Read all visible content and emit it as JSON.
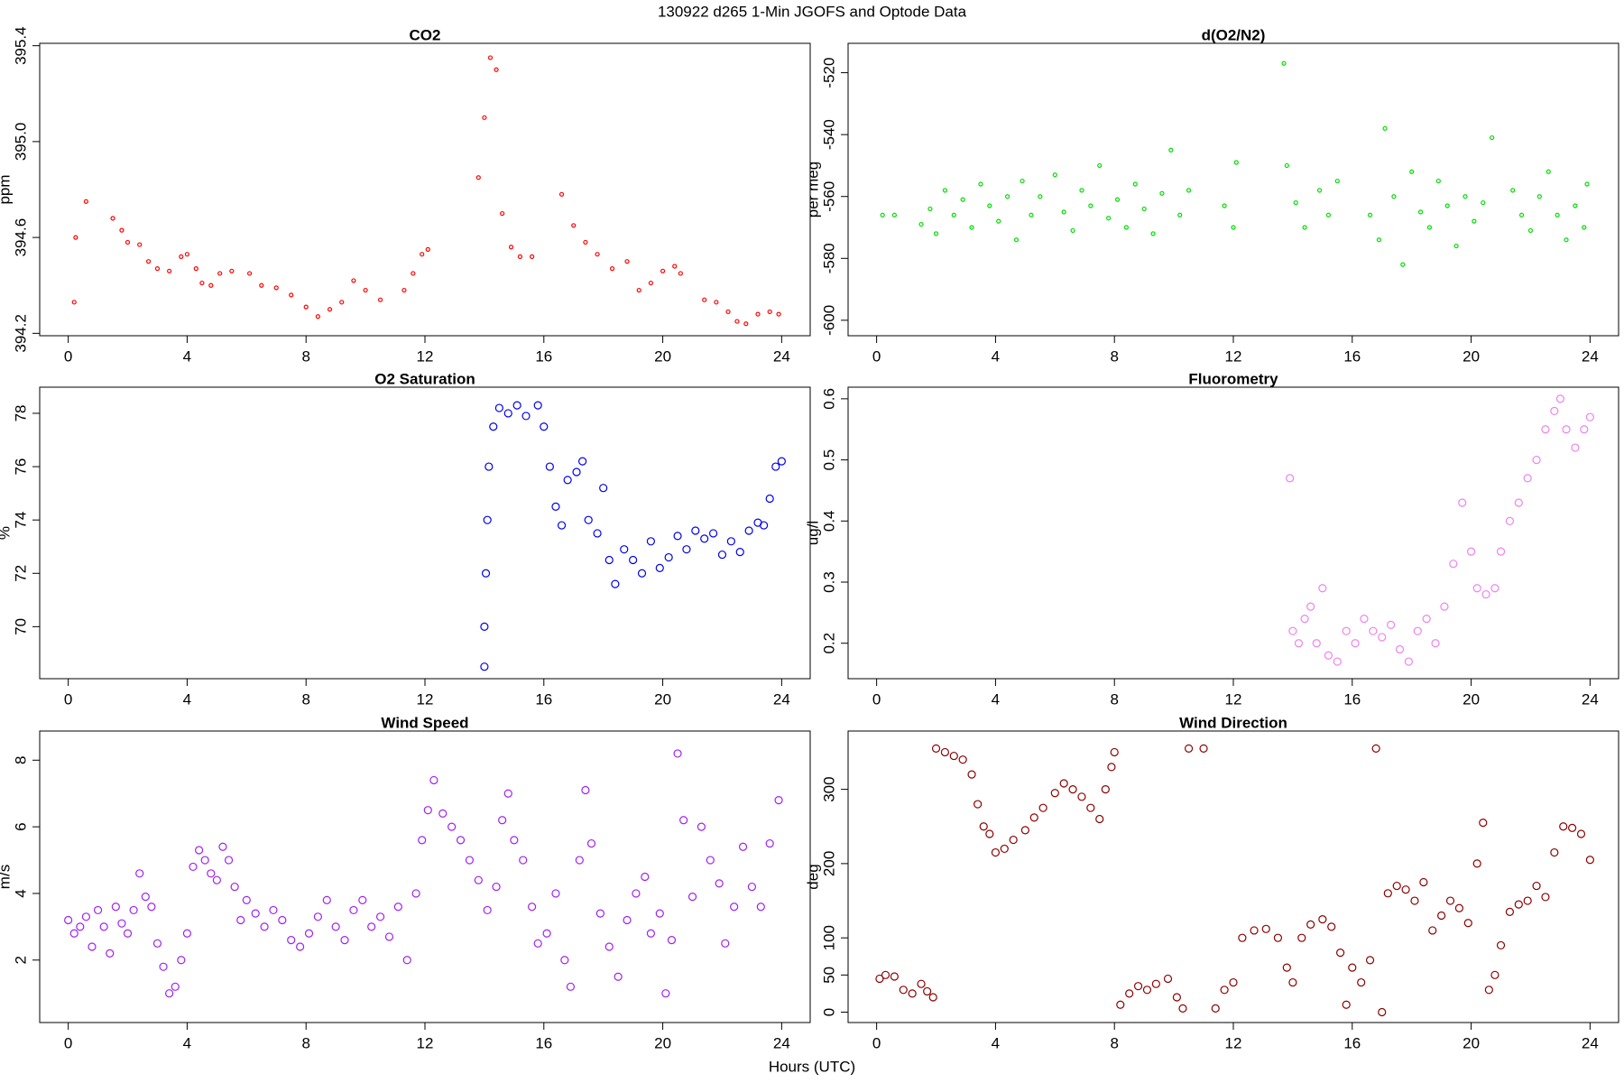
{
  "title": "130922   d265   1-Min  JGOFS and Optode Data",
  "xlabel": "Hours (UTC)",
  "chart_data": [
    {
      "type": "scatter",
      "title": "CO2",
      "ylabel": "ppm",
      "color": "#ff0000",
      "marker_size": 2,
      "xlim": [
        -0.96,
        24.96
      ],
      "ylim": [
        394.19,
        395.41
      ],
      "xticks": [
        0,
        4,
        8,
        12,
        16,
        20,
        24
      ],
      "yticks": [
        394.2,
        394.6,
        {
          "value": 395,
          "label": "395.0"
        },
        395.4
      ],
      "x": [
        0.2,
        0.25,
        0.6,
        1.5,
        1.8,
        2.0,
        2.4,
        2.7,
        3.0,
        3.4,
        3.8,
        4.0,
        4.3,
        4.5,
        4.8,
        5.1,
        5.5,
        6.1,
        6.5,
        7.0,
        7.5,
        8.0,
        8.4,
        8.8,
        9.2,
        9.6,
        10.0,
        10.5,
        11.3,
        11.6,
        11.9,
        12.1,
        13.8,
        14.0,
        14.2,
        14.4,
        14.6,
        14.9,
        15.2,
        15.6,
        16.6,
        17.0,
        17.4,
        17.8,
        18.3,
        18.8,
        19.2,
        19.6,
        20.0,
        20.4,
        20.6,
        21.4,
        21.8,
        22.2,
        22.5,
        22.8,
        23.2,
        23.6,
        23.9
      ],
      "values": [
        394.33,
        394.6,
        394.75,
        394.68,
        394.63,
        394.58,
        394.57,
        394.5,
        394.47,
        394.46,
        394.52,
        394.53,
        394.47,
        394.41,
        394.4,
        394.45,
        394.46,
        394.45,
        394.4,
        394.39,
        394.36,
        394.31,
        394.27,
        394.3,
        394.33,
        394.42,
        394.38,
        394.34,
        394.38,
        394.45,
        394.53,
        394.55,
        394.85,
        395.1,
        395.35,
        395.3,
        394.7,
        394.56,
        394.52,
        394.52,
        394.78,
        394.65,
        394.58,
        394.53,
        394.47,
        394.5,
        394.38,
        394.41,
        394.46,
        394.48,
        394.45,
        394.34,
        394.33,
        394.29,
        394.25,
        394.24,
        394.28,
        394.29,
        394.28
      ]
    },
    {
      "type": "scatter",
      "title": "d(O2/N2)",
      "ylabel": "per meg",
      "color": "#00dd00",
      "marker_size": 2,
      "xlim": [
        -0.96,
        24.96
      ],
      "ylim": [
        -605,
        -510.5
      ],
      "xticks": [
        0,
        4,
        8,
        12,
        16,
        20,
        24
      ],
      "yticks": [
        -600,
        -580,
        -560,
        -540,
        -520
      ],
      "x": [
        0.2,
        0.6,
        1.5,
        1.8,
        2.0,
        2.3,
        2.6,
        2.9,
        3.2,
        3.5,
        3.8,
        4.1,
        4.4,
        4.7,
        4.9,
        5.2,
        5.5,
        6.0,
        6.3,
        6.6,
        6.9,
        7.2,
        7.5,
        7.8,
        8.1,
        8.4,
        8.7,
        9.0,
        9.3,
        9.6,
        9.9,
        10.2,
        10.5,
        11.7,
        12.0,
        12.1,
        13.7,
        13.8,
        14.1,
        14.4,
        14.9,
        15.2,
        15.5,
        16.6,
        16.9,
        17.1,
        17.4,
        17.7,
        18.0,
        18.3,
        18.6,
        18.9,
        19.2,
        19.5,
        19.8,
        20.1,
        20.4,
        20.7,
        21.4,
        21.7,
        22.0,
        22.3,
        22.6,
        22.9,
        23.2,
        23.5,
        23.8,
        23.9
      ],
      "values": [
        -566,
        -566,
        -569,
        -564,
        -572,
        -558,
        -566,
        -561,
        -570,
        -556,
        -563,
        -568,
        -560,
        -574,
        -555,
        -566,
        -560,
        -553,
        -565,
        -571,
        -558,
        -563,
        -550,
        -567,
        -561,
        -570,
        -556,
        -564,
        -572,
        -559,
        -545,
        -566,
        -558,
        -563,
        -570,
        -549,
        -517,
        -550,
        -562,
        -570,
        -558,
        -566,
        -555,
        -566,
        -574,
        -538,
        -560,
        -582,
        -552,
        -565,
        -570,
        -555,
        -563,
        -576,
        -560,
        -568,
        -562,
        -541,
        -558,
        -566,
        -571,
        -560,
        -552,
        -566,
        -574,
        -563,
        -570,
        -556
      ]
    },
    {
      "type": "scatter",
      "title": "O2 Saturation",
      "ylabel": "%",
      "color": "#0000ee",
      "marker_size": 4,
      "xlim": [
        -0.96,
        24.96
      ],
      "ylim": [
        68.05,
        78.98
      ],
      "xticks": [
        0,
        4,
        8,
        12,
        16,
        20,
        24
      ],
      "yticks": [
        70,
        72,
        74,
        76,
        78
      ],
      "x": [
        14.0,
        14.0,
        14.05,
        14.1,
        14.15,
        14.3,
        14.5,
        14.8,
        15.1,
        15.4,
        15.8,
        16.0,
        16.2,
        16.4,
        16.6,
        16.8,
        17.1,
        17.3,
        17.5,
        17.8,
        18.0,
        18.2,
        18.4,
        18.7,
        19.0,
        19.3,
        19.6,
        19.9,
        20.2,
        20.5,
        20.8,
        21.1,
        21.4,
        21.7,
        22.0,
        22.3,
        22.6,
        22.9,
        23.2,
        23.4,
        23.6,
        23.8,
        24.0
      ],
      "values": [
        68.5,
        70,
        72,
        74,
        76,
        77.5,
        78.2,
        78,
        78.3,
        77.9,
        78.3,
        77.5,
        76,
        74.5,
        73.8,
        75.5,
        75.8,
        76.2,
        74,
        73.5,
        75.2,
        72.5,
        71.6,
        72.9,
        72.5,
        72,
        73.2,
        72.2,
        72.6,
        73.4,
        72.9,
        73.6,
        73.3,
        73.5,
        72.7,
        73.2,
        72.8,
        73.6,
        73.9,
        73.8,
        74.8,
        76,
        76.2
      ]
    },
    {
      "type": "scatter",
      "title": "Fluorometry",
      "ylabel": "ug/l",
      "color": "#ee82ee",
      "marker_size": 4,
      "xlim": [
        -0.96,
        24.96
      ],
      "ylim": [
        0.142,
        0.619
      ],
      "xticks": [
        0,
        4,
        8,
        12,
        16,
        20,
        24
      ],
      "yticks": [
        0.2,
        0.3,
        0.4,
        0.5,
        0.6
      ],
      "x": [
        13.9,
        14.0,
        14.2,
        14.4,
        14.6,
        14.8,
        15.0,
        15.2,
        15.5,
        15.8,
        16.1,
        16.4,
        16.7,
        17.0,
        17.3,
        17.6,
        17.9,
        18.2,
        18.5,
        18.8,
        19.1,
        19.4,
        19.7,
        20.0,
        20.2,
        20.5,
        20.8,
        21.0,
        21.3,
        21.6,
        21.9,
        22.2,
        22.5,
        22.8,
        23.0,
        23.2,
        23.5,
        23.8,
        24.0
      ],
      "values": [
        0.47,
        0.22,
        0.2,
        0.24,
        0.26,
        0.2,
        0.29,
        0.18,
        0.17,
        0.22,
        0.2,
        0.24,
        0.22,
        0.21,
        0.23,
        0.19,
        0.17,
        0.22,
        0.24,
        0.2,
        0.26,
        0.33,
        0.43,
        0.35,
        0.29,
        0.28,
        0.29,
        0.35,
        0.4,
        0.43,
        0.47,
        0.5,
        0.55,
        0.58,
        0.6,
        0.55,
        0.52,
        0.55,
        0.57
      ]
    },
    {
      "type": "scatter",
      "title": "Wind Speed",
      "ylabel": "m/s",
      "color": "#a020f0",
      "marker_size": 4,
      "xlim": [
        -0.96,
        24.96
      ],
      "ylim": [
        0.125,
        8.875
      ],
      "xticks": [
        0,
        4,
        8,
        12,
        16,
        20,
        24
      ],
      "yticks": [
        2,
        4,
        6,
        8
      ],
      "x": [
        0,
        0.2,
        0.4,
        0.6,
        0.8,
        1.0,
        1.2,
        1.4,
        1.6,
        1.8,
        2.0,
        2.2,
        2.4,
        2.6,
        2.8,
        3.0,
        3.2,
        3.4,
        3.6,
        3.8,
        4.0,
        4.2,
        4.4,
        4.6,
        4.8,
        5.0,
        5.2,
        5.4,
        5.6,
        5.8,
        6.0,
        6.3,
        6.6,
        6.9,
        7.2,
        7.5,
        7.8,
        8.1,
        8.4,
        8.7,
        9.0,
        9.3,
        9.6,
        9.9,
        10.2,
        10.5,
        10.8,
        11.1,
        11.4,
        11.7,
        11.9,
        12.1,
        12.3,
        12.6,
        12.9,
        13.2,
        13.5,
        13.8,
        14.1,
        14.4,
        14.6,
        14.8,
        15.0,
        15.3,
        15.6,
        15.8,
        16.1,
        16.4,
        16.7,
        16.9,
        17.2,
        17.4,
        17.6,
        17.9,
        18.2,
        18.5,
        18.8,
        19.1,
        19.4,
        19.6,
        19.9,
        20.1,
        20.3,
        20.5,
        20.7,
        21.0,
        21.3,
        21.6,
        21.9,
        22.1,
        22.4,
        22.7,
        23.0,
        23.3,
        23.6,
        23.9
      ],
      "values": [
        3.2,
        2.8,
        3.0,
        3.3,
        2.4,
        3.5,
        3.0,
        2.2,
        3.6,
        3.1,
        2.8,
        3.5,
        4.6,
        3.9,
        3.6,
        2.5,
        1.8,
        1.0,
        1.2,
        2.0,
        2.8,
        4.8,
        5.3,
        5.0,
        4.6,
        4.4,
        5.4,
        5.0,
        4.2,
        3.2,
        3.8,
        3.4,
        3.0,
        3.5,
        3.2,
        2.6,
        2.4,
        2.8,
        3.3,
        3.8,
        3.0,
        2.6,
        3.5,
        3.8,
        3.0,
        3.3,
        2.7,
        3.6,
        2.0,
        4.0,
        5.6,
        6.5,
        7.4,
        6.4,
        6.0,
        5.6,
        5.0,
        4.4,
        3.5,
        4.2,
        6.2,
        7.0,
        5.6,
        5.0,
        3.6,
        2.5,
        2.8,
        4.0,
        2.0,
        1.2,
        5.0,
        7.1,
        5.5,
        3.4,
        2.4,
        1.5,
        3.2,
        4.0,
        4.5,
        2.8,
        3.4,
        1.0,
        2.6,
        8.2,
        6.2,
        3.9,
        6.0,
        5.0,
        4.3,
        2.5,
        3.6,
        5.4,
        4.2,
        3.6,
        5.5,
        6.8
      ]
    },
    {
      "type": "scatter",
      "title": "Wind Direction",
      "ylabel": "deg",
      "color": "#8b0000",
      "marker_size": 4,
      "xlim": [
        -0.96,
        24.96
      ],
      "ylim": [
        -14,
        378.5
      ],
      "xticks": [
        0,
        4,
        8,
        12,
        16,
        20,
        24
      ],
      "yticks": [
        0,
        50,
        100,
        200,
        300
      ],
      "x": [
        0.1,
        0.3,
        0.6,
        0.9,
        1.2,
        1.5,
        1.7,
        1.9,
        2.0,
        2.3,
        2.6,
        2.9,
        3.2,
        3.4,
        3.6,
        3.8,
        4.0,
        4.3,
        4.6,
        5.0,
        5.3,
        5.6,
        6.0,
        6.3,
        6.6,
        6.9,
        7.2,
        7.5,
        7.7,
        7.9,
        8.0,
        8.2,
        8.5,
        8.8,
        9.1,
        9.4,
        9.8,
        10.1,
        10.3,
        10.5,
        11.0,
        11.4,
        11.7,
        12.0,
        12.3,
        12.7,
        13.1,
        13.5,
        13.8,
        14.0,
        14.3,
        14.6,
        15.0,
        15.3,
        15.6,
        15.8,
        16.0,
        16.3,
        16.6,
        16.8,
        17.0,
        17.2,
        17.5,
        17.8,
        18.1,
        18.4,
        18.7,
        19.0,
        19.3,
        19.6,
        19.9,
        20.2,
        20.4,
        20.6,
        20.8,
        21.0,
        21.3,
        21.6,
        21.9,
        22.2,
        22.5,
        22.8,
        23.1,
        23.4,
        23.7,
        24.0
      ],
      "values": [
        45,
        50,
        48,
        30,
        25,
        38,
        28,
        20,
        355,
        350,
        345,
        340,
        320,
        280,
        250,
        240,
        215,
        220,
        232,
        245,
        262,
        275,
        295,
        308,
        300,
        290,
        275,
        260,
        300,
        330,
        350,
        10,
        25,
        35,
        30,
        38,
        45,
        20,
        5,
        355,
        355,
        5,
        30,
        40,
        100,
        110,
        112,
        100,
        60,
        40,
        100,
        118,
        125,
        115,
        80,
        10,
        60,
        40,
        70,
        355,
        0,
        160,
        170,
        165,
        150,
        175,
        110,
        130,
        150,
        140,
        120,
        200,
        255,
        30,
        50,
        90,
        135,
        145,
        150,
        170,
        155,
        215,
        250,
        248,
        240,
        205
      ]
    }
  ]
}
